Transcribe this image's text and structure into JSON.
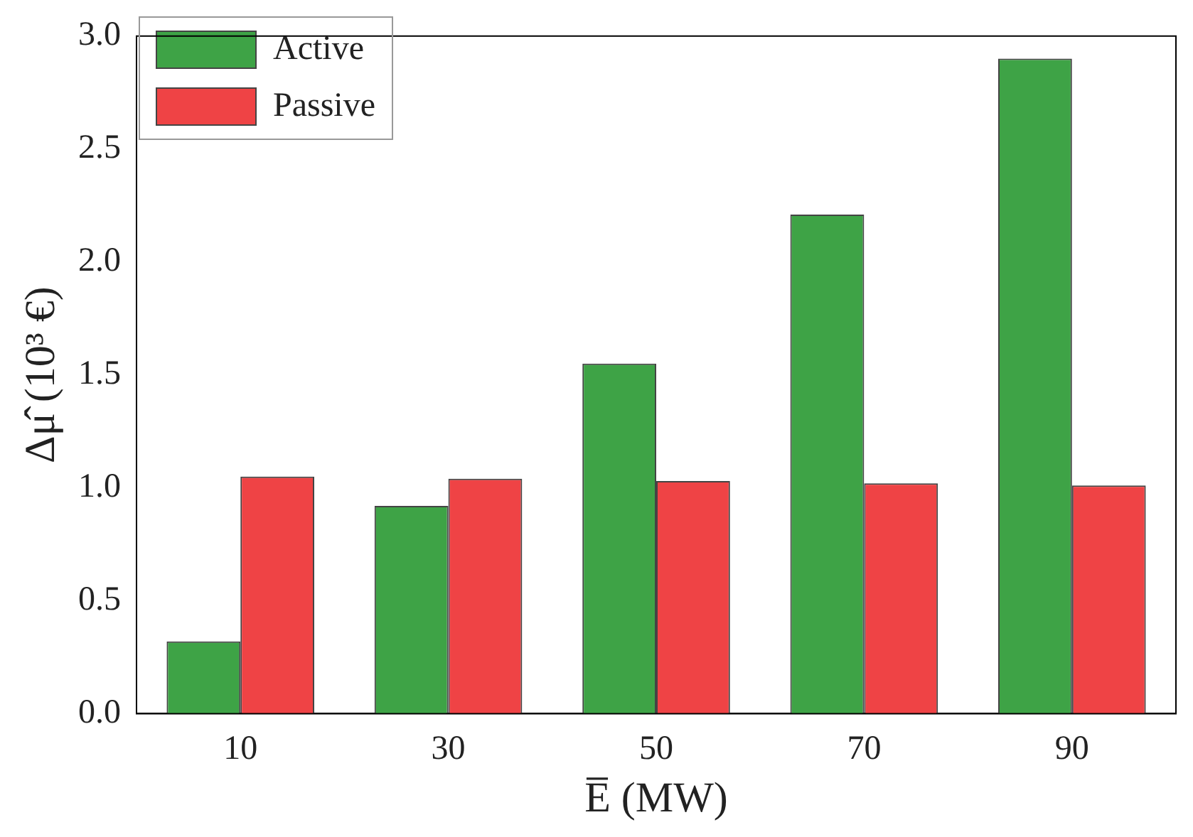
{
  "chart_data": {
    "type": "bar",
    "xlabel": "E̅ (MW)",
    "ylabel": "Δμ̂ (10³ €)",
    "categories": [
      "10",
      "30",
      "50",
      "70",
      "90"
    ],
    "series": [
      {
        "name": "Active",
        "color": "#3ea346",
        "values": [
          0.32,
          0.92,
          1.55,
          2.21,
          2.9
        ]
      },
      {
        "name": "Passive",
        "color": "#ef4345",
        "values": [
          1.05,
          1.04,
          1.03,
          1.02,
          1.01
        ]
      }
    ],
    "ylim": [
      0,
      3
    ],
    "yticks": [
      {
        "value": 0,
        "label": "0.0"
      },
      {
        "value": 0.5,
        "label": "0.5"
      },
      {
        "value": 1,
        "label": "1.0"
      },
      {
        "value": 1.5,
        "label": "1.5"
      },
      {
        "value": 2,
        "label": "2.0"
      },
      {
        "value": 2.5,
        "label": "2.5"
      },
      {
        "value": 3,
        "label": "3.0"
      }
    ],
    "grid": false,
    "legend": "top left"
  }
}
